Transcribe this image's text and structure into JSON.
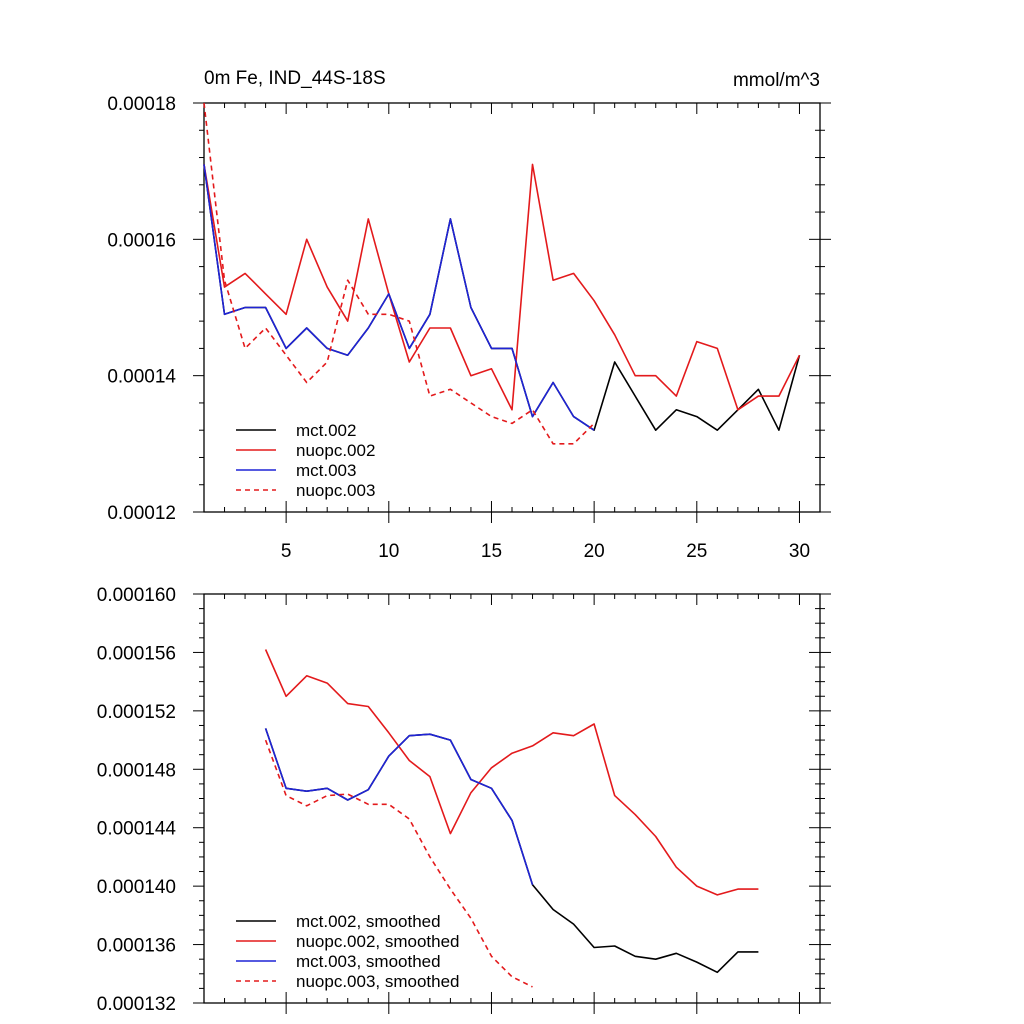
{
  "figure": {
    "title_left": "0m Fe, IND_44S-18S",
    "title_right": "mmol/m^3"
  },
  "chart_data": [
    {
      "type": "line",
      "title": "0m Fe, IND_44S-18S",
      "units": "mmol/m^3",
      "xlim": [
        1,
        31
      ],
      "ylim": [
        0.00012,
        0.00018
      ],
      "x_ticks": [
        5,
        10,
        15,
        20,
        25,
        30
      ],
      "x_tick_labels": [
        "5",
        "10",
        "15",
        "20",
        "25",
        "30"
      ],
      "y_ticks": [
        0.00012,
        0.00014,
        0.00016,
        0.00018
      ],
      "y_tick_labels": [
        "0.00012",
        "0.00014",
        "0.00016",
        "0.00018"
      ],
      "legend_position": "bottom-left",
      "series": [
        {
          "name": "mct.002",
          "color": "#000000",
          "dash": "solid",
          "x": [
            1,
            2,
            3,
            4,
            5,
            6,
            7,
            8,
            9,
            10,
            11,
            12,
            13,
            14,
            15,
            16,
            17,
            18,
            19,
            20,
            21,
            22,
            23,
            24,
            25,
            26,
            27,
            28,
            29,
            30
          ],
          "values": [
            0.000171,
            0.000149,
            0.00015,
            0.00015,
            0.000144,
            0.000147,
            0.000144,
            0.000143,
            0.000147,
            0.000152,
            0.000144,
            0.000149,
            0.000163,
            0.00015,
            0.000144,
            0.000144,
            0.000134,
            0.000139,
            0.000134,
            0.000132,
            0.000142,
            0.000137,
            0.000132,
            0.000135,
            0.000134,
            0.000132,
            0.000135,
            0.000138,
            0.000132,
            0.000143
          ]
        },
        {
          "name": "nuopc.002",
          "color": "#e31a1c",
          "dash": "solid",
          "x": [
            1,
            2,
            3,
            4,
            5,
            6,
            7,
            8,
            9,
            10,
            11,
            12,
            13,
            14,
            15,
            16,
            17,
            18,
            19,
            20,
            21,
            22,
            23,
            24,
            25,
            26,
            27,
            28,
            29,
            30
          ],
          "values": [
            0.000171,
            0.000153,
            0.000155,
            0.000152,
            0.000149,
            0.00016,
            0.000153,
            0.000148,
            0.000163,
            0.000152,
            0.000142,
            0.000147,
            0.000147,
            0.00014,
            0.000141,
            0.000135,
            0.000171,
            0.000154,
            0.000155,
            0.000151,
            0.000146,
            0.00014,
            0.00014,
            0.000137,
            0.000145,
            0.000144,
            0.000135,
            0.000137,
            0.000137,
            0.000143
          ]
        },
        {
          "name": "mct.003",
          "color": "#1f24d6",
          "dash": "solid",
          "x": [
            1,
            2,
            3,
            4,
            5,
            6,
            7,
            8,
            9,
            10,
            11,
            12,
            13,
            14,
            15,
            16,
            17,
            18,
            19,
            20
          ],
          "values": [
            0.000171,
            0.000149,
            0.00015,
            0.00015,
            0.000144,
            0.000147,
            0.000144,
            0.000143,
            0.000147,
            0.000152,
            0.000144,
            0.000149,
            0.000163,
            0.00015,
            0.000144,
            0.000144,
            0.000134,
            0.000139,
            0.000134,
            0.000132
          ]
        },
        {
          "name": "nuopc.003",
          "color": "#e31a1c",
          "dash": "dashed",
          "x": [
            1,
            2,
            3,
            4,
            5,
            6,
            7,
            8,
            9,
            10,
            11,
            12,
            13,
            14,
            15,
            16,
            17,
            18,
            19,
            20
          ],
          "values": [
            0.00018,
            0.000154,
            0.000144,
            0.000147,
            0.000143,
            0.000139,
            0.000142,
            0.000154,
            0.000149,
            0.000149,
            0.000148,
            0.000137,
            0.000138,
            0.000136,
            0.000134,
            0.000133,
            0.000135,
            0.00013,
            0.00013,
            0.000133
          ]
        }
      ]
    },
    {
      "type": "line",
      "title": "",
      "xlim": [
        1,
        31
      ],
      "ylim": [
        0.000132,
        0.00016
      ],
      "x_ticks": [
        5,
        10,
        15,
        20,
        25,
        30
      ],
      "y_ticks": [
        0.000132,
        0.000136,
        0.00014,
        0.000144,
        0.000148,
        0.000152,
        0.000156,
        0.00016
      ],
      "y_tick_labels": [
        "0.000132",
        "0.000136",
        "0.000140",
        "0.000144",
        "0.000148",
        "0.000152",
        "0.000156",
        "0.000160"
      ],
      "legend_position": "bottom-left",
      "series": [
        {
          "name": "mct.002, smoothed",
          "color": "#000000",
          "dash": "solid",
          "x": [
            4,
            5,
            6,
            7,
            8,
            9,
            10,
            11,
            12,
            13,
            14,
            15,
            16,
            17,
            18,
            19,
            20,
            21,
            22,
            23,
            24,
            25,
            26,
            27,
            28
          ],
          "values": [
            0.0001508,
            0.0001467,
            0.0001465,
            0.0001467,
            0.0001459,
            0.0001466,
            0.0001489,
            0.0001503,
            0.0001504,
            0.00015,
            0.0001473,
            0.0001467,
            0.0001445,
            0.0001401,
            0.0001384,
            0.0001374,
            0.0001358,
            0.0001359,
            0.0001352,
            0.000135,
            0.0001354,
            0.0001348,
            0.0001341,
            0.0001355,
            0.0001355
          ]
        },
        {
          "name": "nuopc.002, smoothed",
          "color": "#e31a1c",
          "dash": "solid",
          "x": [
            4,
            5,
            6,
            7,
            8,
            9,
            10,
            11,
            12,
            13,
            14,
            15,
            16,
            17,
            18,
            19,
            20,
            21,
            22,
            23,
            24,
            25,
            26,
            27,
            28
          ],
          "values": [
            0.0001562,
            0.000153,
            0.0001544,
            0.0001539,
            0.0001525,
            0.0001523,
            0.0001505,
            0.0001486,
            0.0001475,
            0.0001436,
            0.0001464,
            0.0001481,
            0.0001491,
            0.0001496,
            0.0001505,
            0.0001503,
            0.0001511,
            0.0001462,
            0.0001449,
            0.0001434,
            0.0001413,
            0.00014,
            0.0001394,
            0.0001398,
            0.0001398
          ]
        },
        {
          "name": "mct.003, smoothed",
          "color": "#1f24d6",
          "dash": "solid",
          "x": [
            4,
            5,
            6,
            7,
            8,
            9,
            10,
            11,
            12,
            13,
            14,
            15,
            16,
            17
          ],
          "values": [
            0.0001508,
            0.0001467,
            0.0001465,
            0.0001467,
            0.0001459,
            0.0001466,
            0.0001489,
            0.0001503,
            0.0001504,
            0.00015,
            0.0001473,
            0.0001467,
            0.0001445,
            0.0001401
          ]
        },
        {
          "name": "nuopc.003, smoothed",
          "color": "#e31a1c",
          "dash": "dashed",
          "x": [
            4,
            5,
            6,
            7,
            8,
            9,
            10,
            11,
            12,
            13,
            14,
            15,
            16,
            17
          ],
          "values": [
            0.00015,
            0.0001462,
            0.0001455,
            0.0001462,
            0.0001463,
            0.0001456,
            0.0001456,
            0.0001446,
            0.000142,
            0.0001398,
            0.0001378,
            0.0001352,
            0.0001338,
            0.0001331
          ]
        }
      ]
    }
  ]
}
